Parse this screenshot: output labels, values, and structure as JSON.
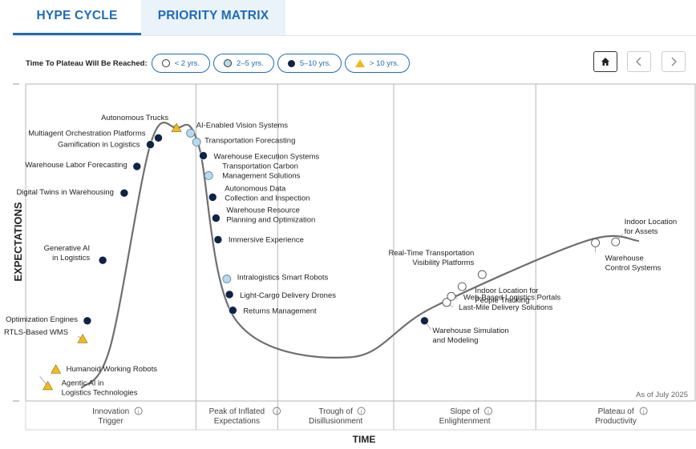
{
  "tabs": [
    {
      "label": "HYPE CYCLE",
      "active": true
    },
    {
      "label": "PRIORITY MATRIX",
      "active": false
    }
  ],
  "legend": {
    "title": "Time To Plateau Will Be Reached:",
    "items": [
      {
        "label": "< 2 yrs.",
        "marker": "open-circle"
      },
      {
        "label": "2–5 yrs.",
        "marker": "light-circle"
      },
      {
        "label": "5–10 yrs.",
        "marker": "dark-circle"
      },
      {
        "label": "> 10 yrs.",
        "marker": "triangle"
      }
    ]
  },
  "nav": {
    "home_icon": "home-icon",
    "prev_icon": "chevron-left-icon",
    "next_icon": "chevron-right-icon"
  },
  "colors": {
    "accent": "#1f6bb8",
    "dark": "#0f2346",
    "light": "#b6daf0",
    "triangle": "#f2b81d",
    "curve": "#6f6f6f"
  },
  "chart_data": {
    "type": "scatter",
    "xlabel": "TIME",
    "ylabel": "EXPECTATIONS",
    "note": "As of July 2025",
    "phases": [
      {
        "label": "Innovation\nTrigger"
      },
      {
        "label": "Peak of Inflated\nExpectations"
      },
      {
        "label": "Trough of\nDisillusionment"
      },
      {
        "label": "Slope of\nEnlightenment"
      },
      {
        "label": "Plateau of\nProductivity"
      }
    ],
    "points": [
      {
        "name": "Agentic AI in\nLogistics Technologies",
        "x": 0.033,
        "y": 0.047,
        "marker": "triangle"
      },
      {
        "name": "Humanoid Working Robots",
        "x": 0.045,
        "y": 0.099,
        "marker": "triangle"
      },
      {
        "name": "RTLS-Based WMS",
        "x": 0.085,
        "y": 0.195,
        "marker": "triangle"
      },
      {
        "name": "Optimization Engines",
        "x": 0.092,
        "y": 0.253,
        "marker": "dark-circle"
      },
      {
        "name": "Generative AI\nin Logistics",
        "x": 0.115,
        "y": 0.444,
        "marker": "dark-circle"
      },
      {
        "name": "Digital Twins in Warehousing",
        "x": 0.147,
        "y": 0.656,
        "marker": "dark-circle"
      },
      {
        "name": "Warehouse Labor Forecasting",
        "x": 0.166,
        "y": 0.74,
        "marker": "dark-circle"
      },
      {
        "name": "Gamification in Logistics",
        "x": 0.186,
        "y": 0.809,
        "marker": "dark-circle"
      },
      {
        "name": "Multiagent Orchestration Platforms",
        "x": 0.198,
        "y": 0.83,
        "marker": "dark-circle"
      },
      {
        "name": "Autonomous Trucks",
        "x": 0.225,
        "y": 0.861,
        "marker": "triangle"
      },
      {
        "name": "AI-Enabled Vision Systems",
        "x": 0.246,
        "y": 0.845,
        "marker": "light-circle"
      },
      {
        "name": "Transportation Forecasting",
        "x": 0.255,
        "y": 0.817,
        "marker": "light-circle"
      },
      {
        "name": "Warehouse Execution Systems",
        "x": 0.265,
        "y": 0.774,
        "marker": "dark-circle"
      },
      {
        "name": "Transportation Carbon\nManagement Solutions",
        "x": 0.273,
        "y": 0.711,
        "marker": "light-circle"
      },
      {
        "name": "Autonomous Data\nCollection and Inspection",
        "x": 0.279,
        "y": 0.643,
        "marker": "dark-circle"
      },
      {
        "name": "Warehouse Resource\nPlanning and Optimization",
        "x": 0.284,
        "y": 0.577,
        "marker": "dark-circle"
      },
      {
        "name": "Immersive Experience",
        "x": 0.287,
        "y": 0.509,
        "marker": "dark-circle"
      },
      {
        "name": "Intralogistics Smart Robots",
        "x": 0.3,
        "y": 0.385,
        "marker": "light-circle"
      },
      {
        "name": "Light-Cargo Delivery Drones",
        "x": 0.304,
        "y": 0.336,
        "marker": "dark-circle"
      },
      {
        "name": "Returns Management",
        "x": 0.309,
        "y": 0.286,
        "marker": "dark-circle"
      },
      {
        "name": "Warehouse Simulation\nand Modeling",
        "x": 0.595,
        "y": 0.253,
        "marker": "dark-circle"
      },
      {
        "name": "Last-Mile Delivery Solutions",
        "x": 0.628,
        "y": 0.311,
        "marker": "open-circle"
      },
      {
        "name": "Web-Based Logistics Portals",
        "x": 0.635,
        "y": 0.33,
        "marker": "open-circle"
      },
      {
        "name": "Indoor Location for\nPeople Tracking",
        "x": 0.651,
        "y": 0.361,
        "marker": "open-circle"
      },
      {
        "name": "Real-Time Transportation\nVisibility Platforms",
        "x": 0.681,
        "y": 0.399,
        "marker": "open-circle"
      },
      {
        "name": "Warehouse\nControl Systems",
        "x": 0.85,
        "y": 0.499,
        "marker": "open-circle"
      },
      {
        "name": "Indoor Location\nfor Assets",
        "x": 0.88,
        "y": 0.502,
        "marker": "open-circle"
      }
    ]
  }
}
